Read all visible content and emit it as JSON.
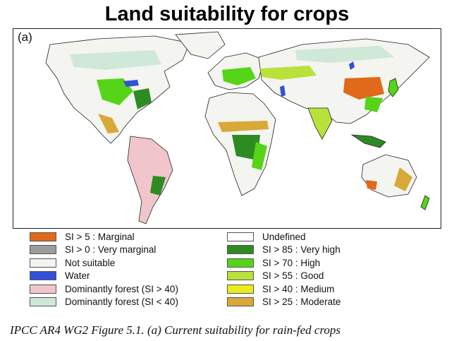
{
  "title": "Land suitability for crops",
  "map": {
    "panel_label": "(a)"
  },
  "legend": {
    "left": [
      {
        "label": "SI > 5 : Marginal",
        "color": "#e0691a"
      },
      {
        "label": "SI > 0 : Very marginal",
        "color": "#9c9c9c"
      },
      {
        "label": "Not suitable",
        "color": "#f3f3f0"
      },
      {
        "label": "Water",
        "color": "#3250d8"
      },
      {
        "label": "Dominantly forest (SI > 40)",
        "color": "#f0c6cc"
      },
      {
        "label": "Dominantly forest (SI < 40)",
        "color": "#cfe8d8"
      }
    ],
    "right": [
      {
        "label": "Undefined",
        "color": "#ffffff"
      },
      {
        "label": "SI > 85 : Very high",
        "color": "#2e8b22"
      },
      {
        "label": "SI > 70 : High",
        "color": "#55d418"
      },
      {
        "label": "SI > 55 : Good",
        "color": "#b8e23a"
      },
      {
        "label": "SI > 40 : Medium",
        "color": "#ecec1c"
      },
      {
        "label": "SI > 25 : Moderate",
        "color": "#d8a838"
      }
    ]
  },
  "caption": "IPCC AR4 WG2 Figure 5.1. (a) Current suitability for rain-fed crops"
}
